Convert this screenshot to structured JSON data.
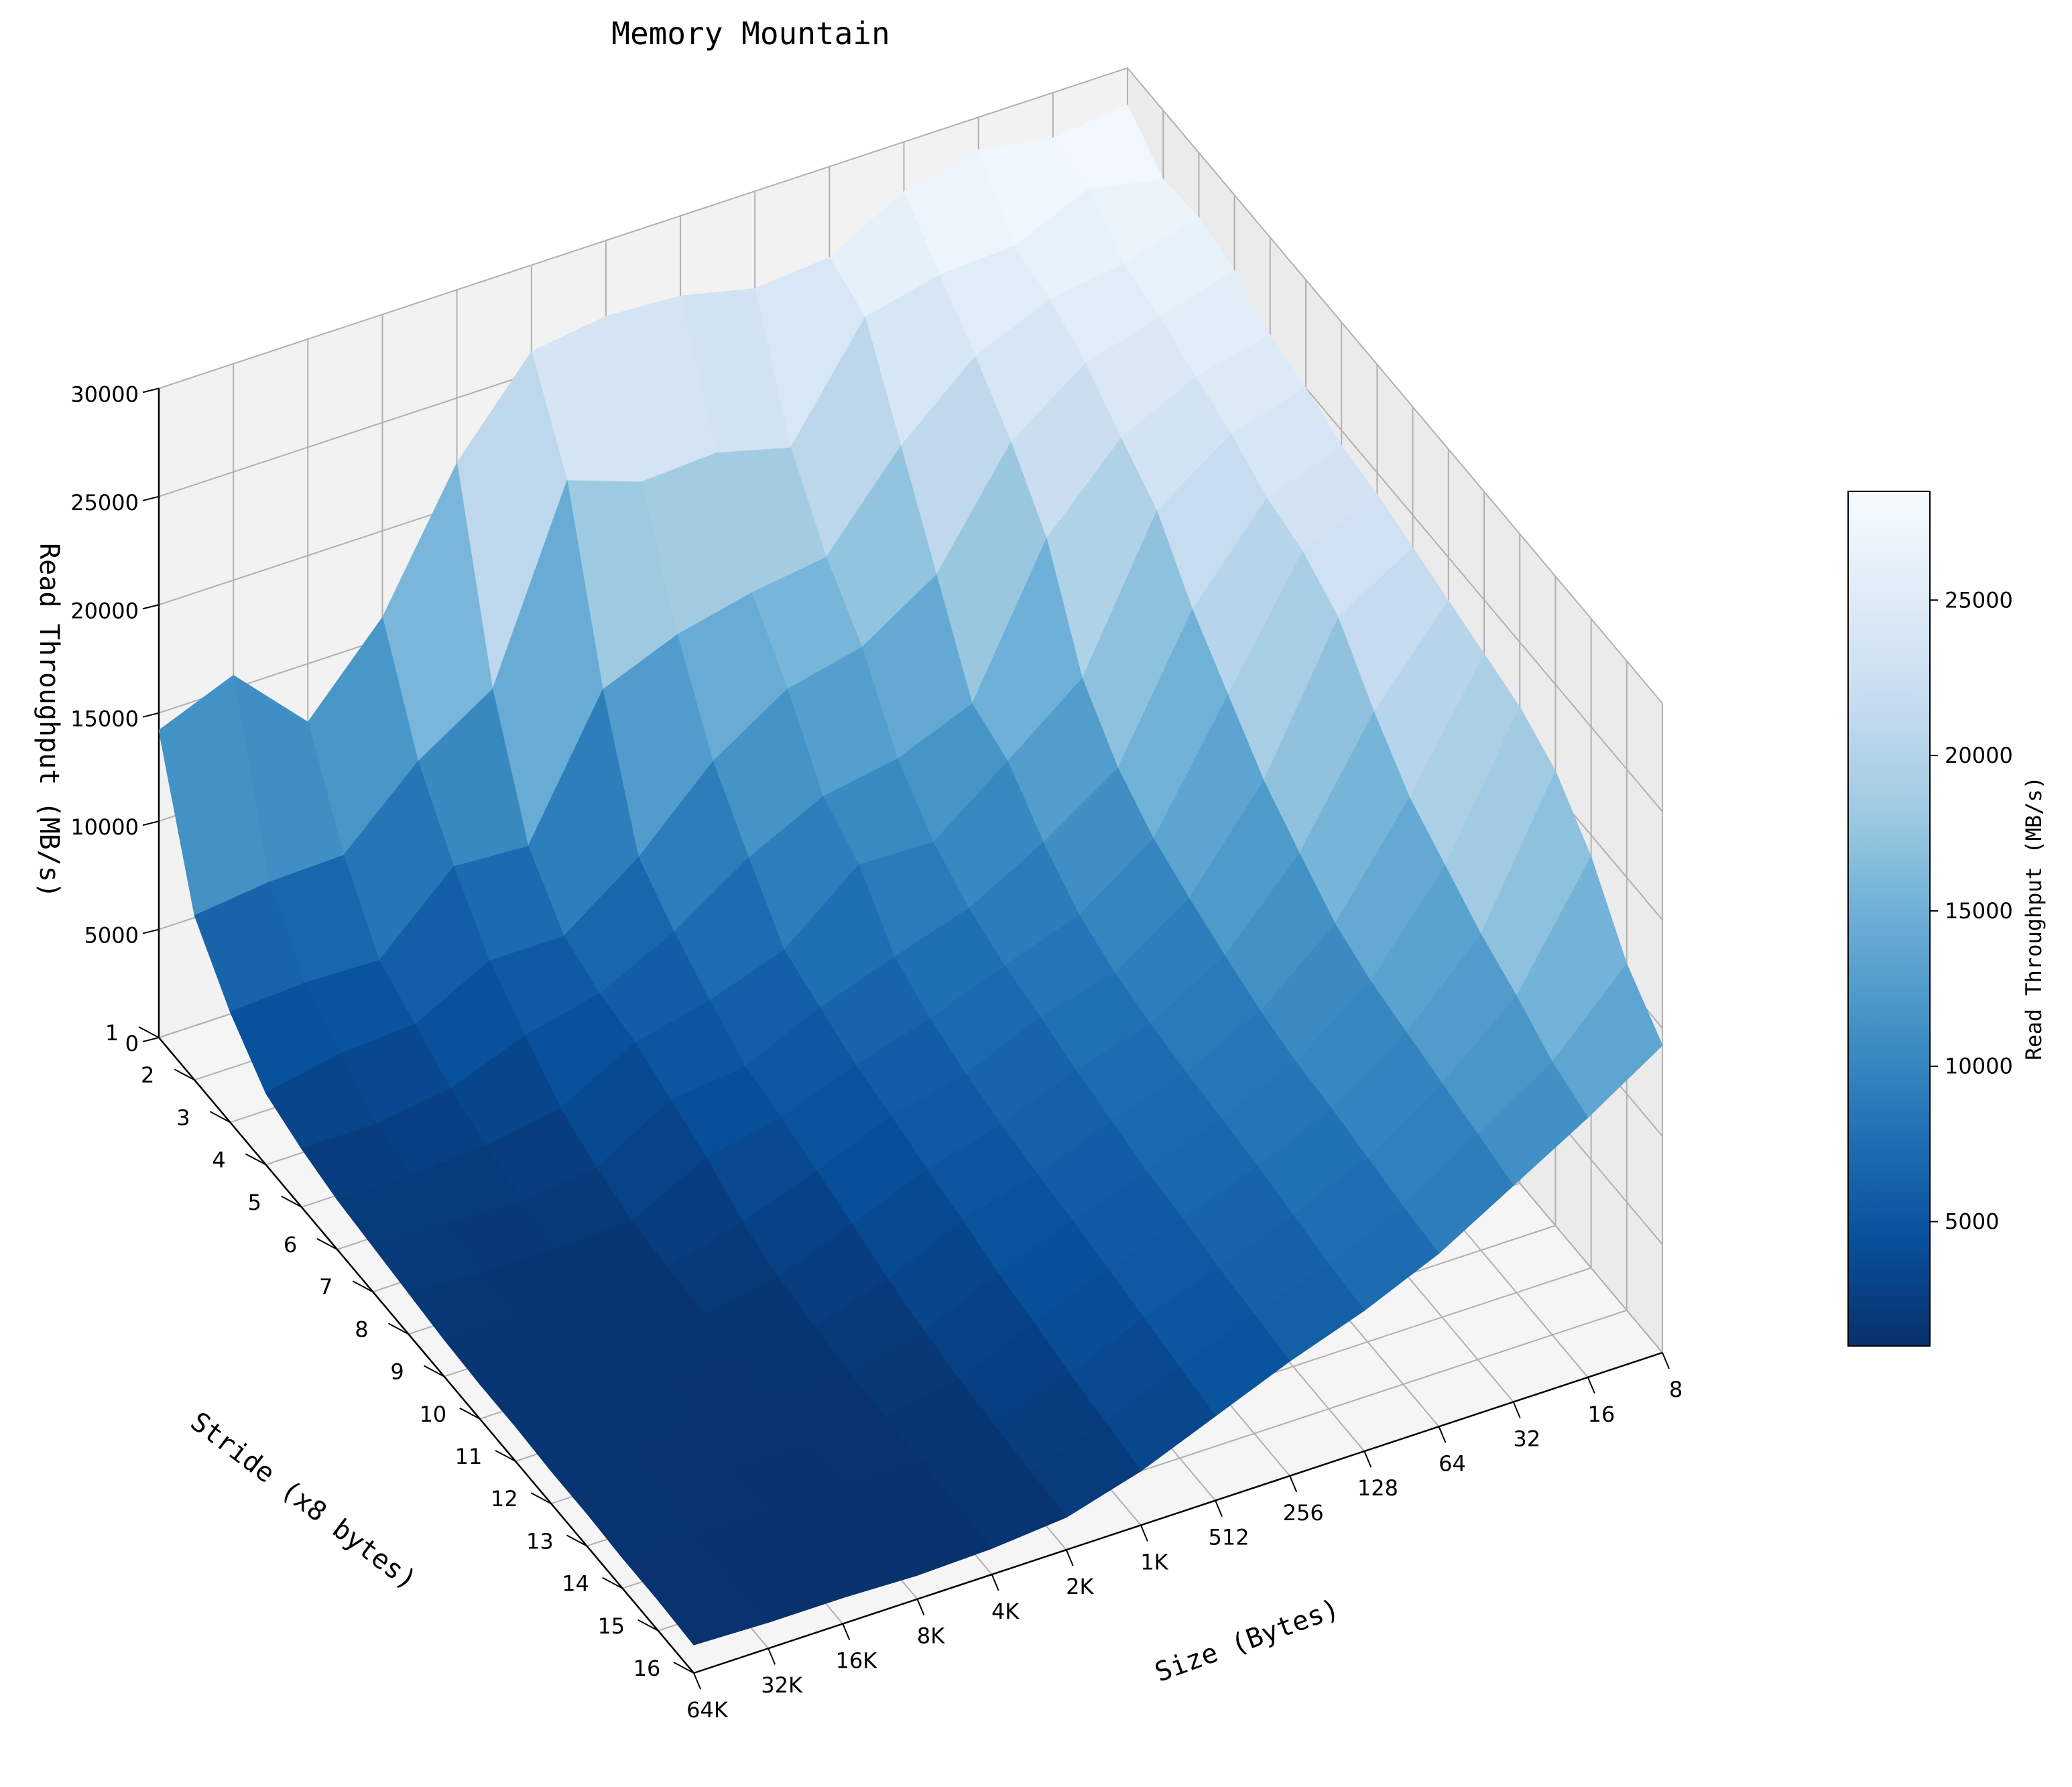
{
  "chart_data": {
    "type": "surface3d",
    "title": "Memory Mountain",
    "xlabel": "Size (Bytes)",
    "ylabel": "Stride (x8 bytes)",
    "zlabel": "Read Throughput (MB/s)",
    "colorbar_label": "Read Throughput (MB/s)",
    "colormap": "Blues_r",
    "size_ticks": [
      "64K",
      "32K",
      "16K",
      "8K",
      "4K",
      "2K",
      "1K",
      "512",
      "256",
      "128",
      "64",
      "32",
      "16",
      "8"
    ],
    "stride_ticks": [
      "1",
      "2",
      "3",
      "4",
      "5",
      "6",
      "7",
      "8",
      "9",
      "10",
      "11",
      "12",
      "13",
      "14",
      "15",
      "16"
    ],
    "z_ticks": [
      "0",
      "5000",
      "10000",
      "15000",
      "20000",
      "25000",
      "30000"
    ],
    "zlim": [
      0,
      30000
    ],
    "colorbar_ticks": [
      "5000",
      "10000",
      "15000",
      "20000",
      "25000"
    ],
    "colorbar_range": [
      1000,
      28500
    ],
    "grid": true,
    "throughput": [
      [
        14200,
        15600,
        12300,
        16000,
        22000,
        26000,
        26500,
        26300,
        25500,
        25800,
        27700,
        28500,
        27900,
        28300
      ],
      [
        7600,
        8000,
        8100,
        11300,
        13500,
        22000,
        20800,
        21000,
        20100,
        25000,
        25800,
        26000,
        27500,
        26800
      ],
      [
        5100,
        5300,
        5200,
        8400,
        8200,
        14300,
        15700,
        16500,
        17000,
        21000,
        24000,
        25500,
        26000,
        27000
      ],
      [
        3300,
        4000,
        4200,
        6000,
        6000,
        8500,
        11800,
        14000,
        14800,
        17000,
        22000,
        24500,
        25500,
        26500
      ],
      [
        2700,
        2700,
        3200,
        4500,
        5300,
        7000,
        9300,
        11000,
        11600,
        13000,
        19500,
        23000,
        24700,
        25500
      ],
      [
        2300,
        2300,
        2500,
        3100,
        5000,
        5800,
        7000,
        9800,
        9700,
        12300,
        15000,
        21600,
        24000,
        25000
      ],
      [
        2100,
        2000,
        1900,
        2300,
        4300,
        4700,
        6300,
        7500,
        8600,
        10500,
        12800,
        19000,
        23000,
        24300
      ],
      [
        1900,
        1700,
        1700,
        1800,
        3600,
        4300,
        5600,
        6600,
        7900,
        9100,
        11500,
        17000,
        22500,
        24000
      ],
      [
        1700,
        1600,
        1500,
        1600,
        2600,
        3800,
        5200,
        6000,
        7500,
        8400,
        10700,
        15000,
        21400,
        23500
      ],
      [
        1600,
        1500,
        1400,
        1400,
        2000,
        3300,
        4700,
        5600,
        7000,
        8000,
        10000,
        13600,
        19000,
        23000
      ],
      [
        1600,
        1400,
        1400,
        1300,
        1700,
        2700,
        4300,
        5300,
        6600,
        7700,
        9400,
        12300,
        17000,
        22500
      ],
      [
        1500,
        1400,
        1300,
        1300,
        1500,
        2300,
        3800,
        5100,
        6200,
        7500,
        9000,
        11600,
        15800,
        22000
      ],
      [
        1500,
        1400,
        1300,
        1200,
        1400,
        2000,
        3500,
        4800,
        6000,
        7300,
        8800,
        11200,
        14600,
        21000
      ],
      [
        1400,
        1300,
        1200,
        1200,
        1300,
        1800,
        3100,
        4500,
        5700,
        7000,
        8500,
        10800,
        13700,
        19000
      ],
      [
        1400,
        1300,
        1200,
        1200,
        1300,
        1600,
        2800,
        4200,
        5500,
        6700,
        8200,
        10400,
        12600,
        16000
      ],
      [
        1300,
        1200,
        1200,
        1100,
        1200,
        1500,
        2500,
        3900,
        5300,
        6500,
        8000,
        10000,
        12000,
        14200
      ]
    ]
  }
}
